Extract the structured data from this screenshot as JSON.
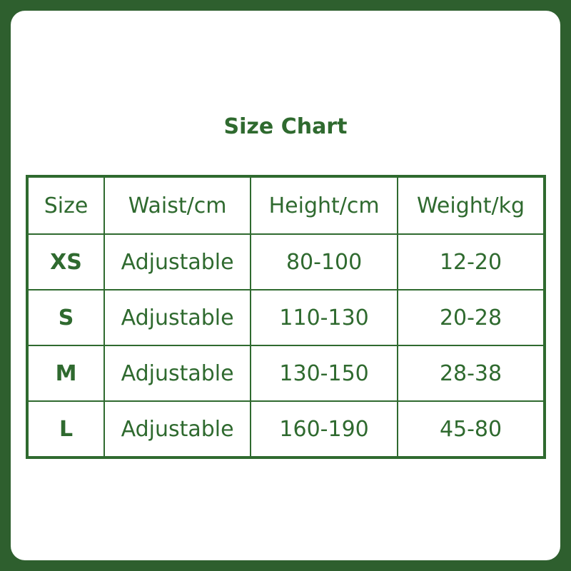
{
  "title": "Size Chart",
  "colors": {
    "frame": "#2e5f2e",
    "accent": "#2f6a2f",
    "card": "#ffffff"
  },
  "table": {
    "headers": [
      "Size",
      "Waist/cm",
      "Height/cm",
      "Weight/kg"
    ],
    "rows": [
      [
        "XS",
        "Adjustable",
        "80-100",
        "12-20"
      ],
      [
        "S",
        "Adjustable",
        "110-130",
        "20-28"
      ],
      [
        "M",
        "Adjustable",
        "130-150",
        "28-38"
      ],
      [
        "L",
        "Adjustable",
        "160-190",
        "45-80"
      ]
    ]
  }
}
